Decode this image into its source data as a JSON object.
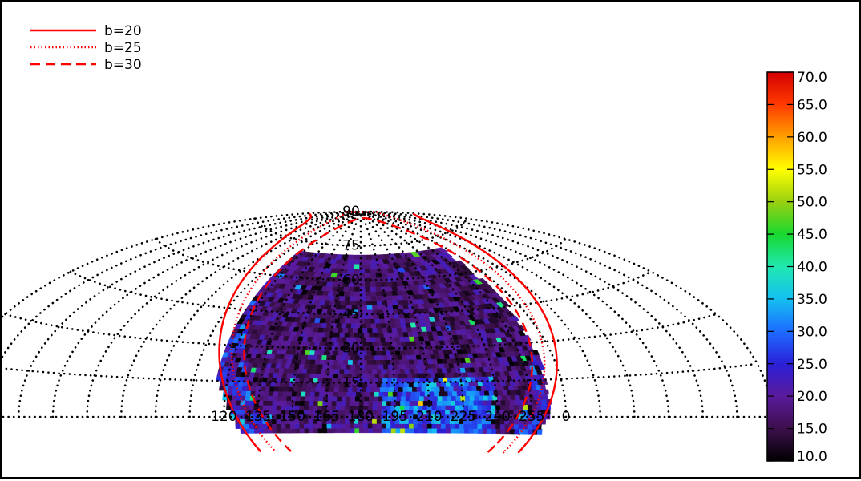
{
  "chart_data": {
    "type": "heatmap",
    "title": "",
    "xlabel": "",
    "ylabel": "",
    "projection": "Aitoff (equatorial, RA/Dec)",
    "grid": true,
    "ra_tick_labels": [
      "120",
      "135",
      "150",
      "165",
      "180",
      "195",
      "210",
      "225",
      "240",
      "255",
      "0"
    ],
    "dec_tick_labels": [
      "0",
      "15",
      "30",
      "45",
      "60",
      "75",
      "90"
    ],
    "colorbar": {
      "range": [
        10.0,
        70.0
      ],
      "ticks": [
        "70.0",
        "65.0",
        "60.0",
        "55.0",
        "50.0",
        "45.0",
        "40.0",
        "35.0",
        "30.0",
        "25.0",
        "20.0",
        "15.0",
        "10.0"
      ],
      "colormap": [
        "#000000",
        "#3c0f4c",
        "#5a1a9c",
        "#2a20d8",
        "#1d6cff",
        "#14c0f0",
        "#20e8b0",
        "#18d830",
        "#9ad010",
        "#ffff00",
        "#ffa000",
        "#ff3a00",
        "#d40000"
      ]
    },
    "legend_position": "top-left",
    "legend": [
      {
        "label": "b=20",
        "style": "solid",
        "color": "#ff0000"
      },
      {
        "label": "b=25",
        "style": "dotted",
        "color": "#ff0000"
      },
      {
        "label": "b=30",
        "style": "dashed",
        "color": "#ff0000"
      }
    ],
    "footprint": {
      "ra_range": [
        115,
        262
      ],
      "dec_range": [
        -7,
        70
      ],
      "typical_value": 17,
      "hot_region": "RA 190-235, Dec 0-15",
      "hot_value": 30,
      "max_value": 60
    }
  }
}
